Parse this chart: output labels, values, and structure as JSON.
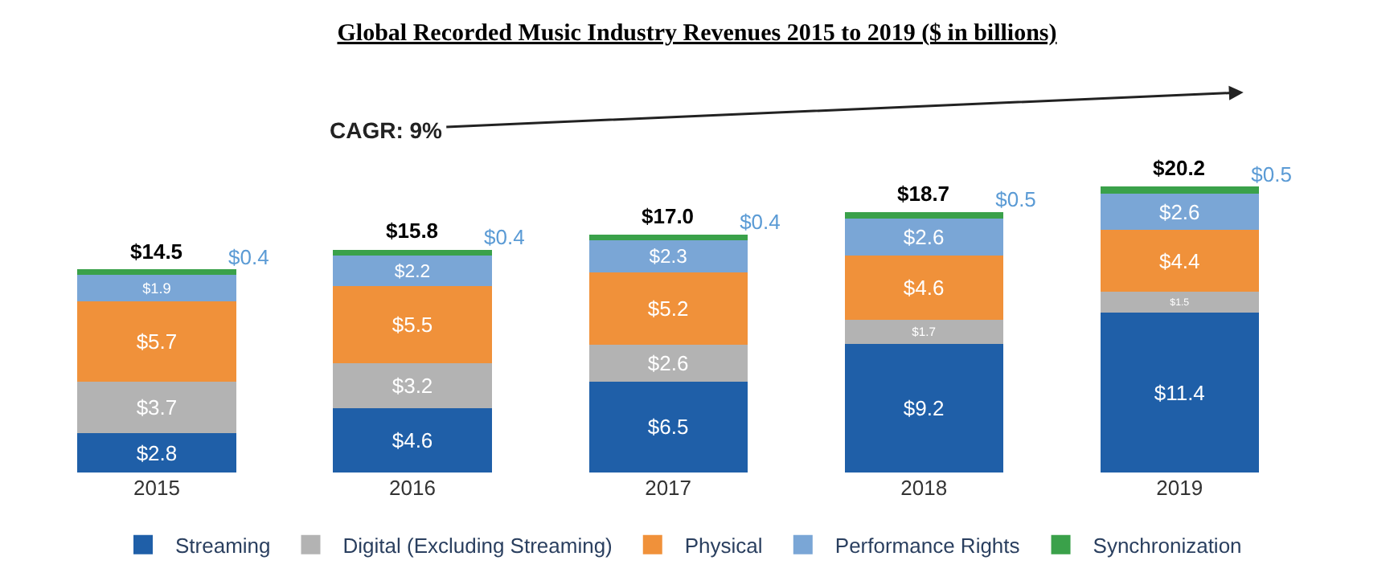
{
  "chart_data": {
    "type": "bar",
    "stacked": true,
    "legend": "bottom",
    "title": "Global Recorded Music Industry Revenues 2015 to 2019 ($ in billions)",
    "categories": [
      "2015",
      "2016",
      "2017",
      "2018",
      "2019"
    ],
    "series": [
      {
        "name": "Streaming",
        "color": "#1f5fa8",
        "values": [
          2.8,
          4.6,
          6.5,
          9.2,
          11.4
        ],
        "value_labels": [
          "$2.8",
          "$4.6",
          "$6.5",
          "$9.2",
          "$11.4"
        ]
      },
      {
        "name": "Digital (Excluding Streaming)",
        "color": "#b3b3b3",
        "values": [
          3.7,
          3.2,
          2.6,
          1.7,
          1.5
        ],
        "value_labels": [
          "$3.7",
          "$3.2",
          "$2.6",
          "$1.7",
          "$1.5"
        ]
      },
      {
        "name": "Physical",
        "color": "#f0913a",
        "values": [
          5.7,
          5.5,
          5.2,
          4.6,
          4.4
        ],
        "value_labels": [
          "$5.7",
          "$5.5",
          "$5.2",
          "$4.6",
          "$4.4"
        ]
      },
      {
        "name": "Performance Rights",
        "color": "#7aa6d6",
        "values": [
          1.9,
          2.2,
          2.3,
          2.6,
          2.6
        ],
        "value_labels": [
          "$1.9",
          "$2.2",
          "$2.3",
          "$2.6",
          "$2.6"
        ]
      },
      {
        "name": "Synchronization",
        "color": "#3aa14a",
        "values": [
          0.4,
          0.4,
          0.4,
          0.5,
          0.5
        ],
        "value_labels": [
          "$0.4",
          "$0.4",
          "$0.4",
          "$0.5",
          "$0.5"
        ]
      }
    ],
    "totals": [
      "$14.5",
      "$15.8",
      "$17.0",
      "$18.7",
      "$20.2"
    ],
    "annotations": [
      "CAGR: 9%"
    ]
  }
}
